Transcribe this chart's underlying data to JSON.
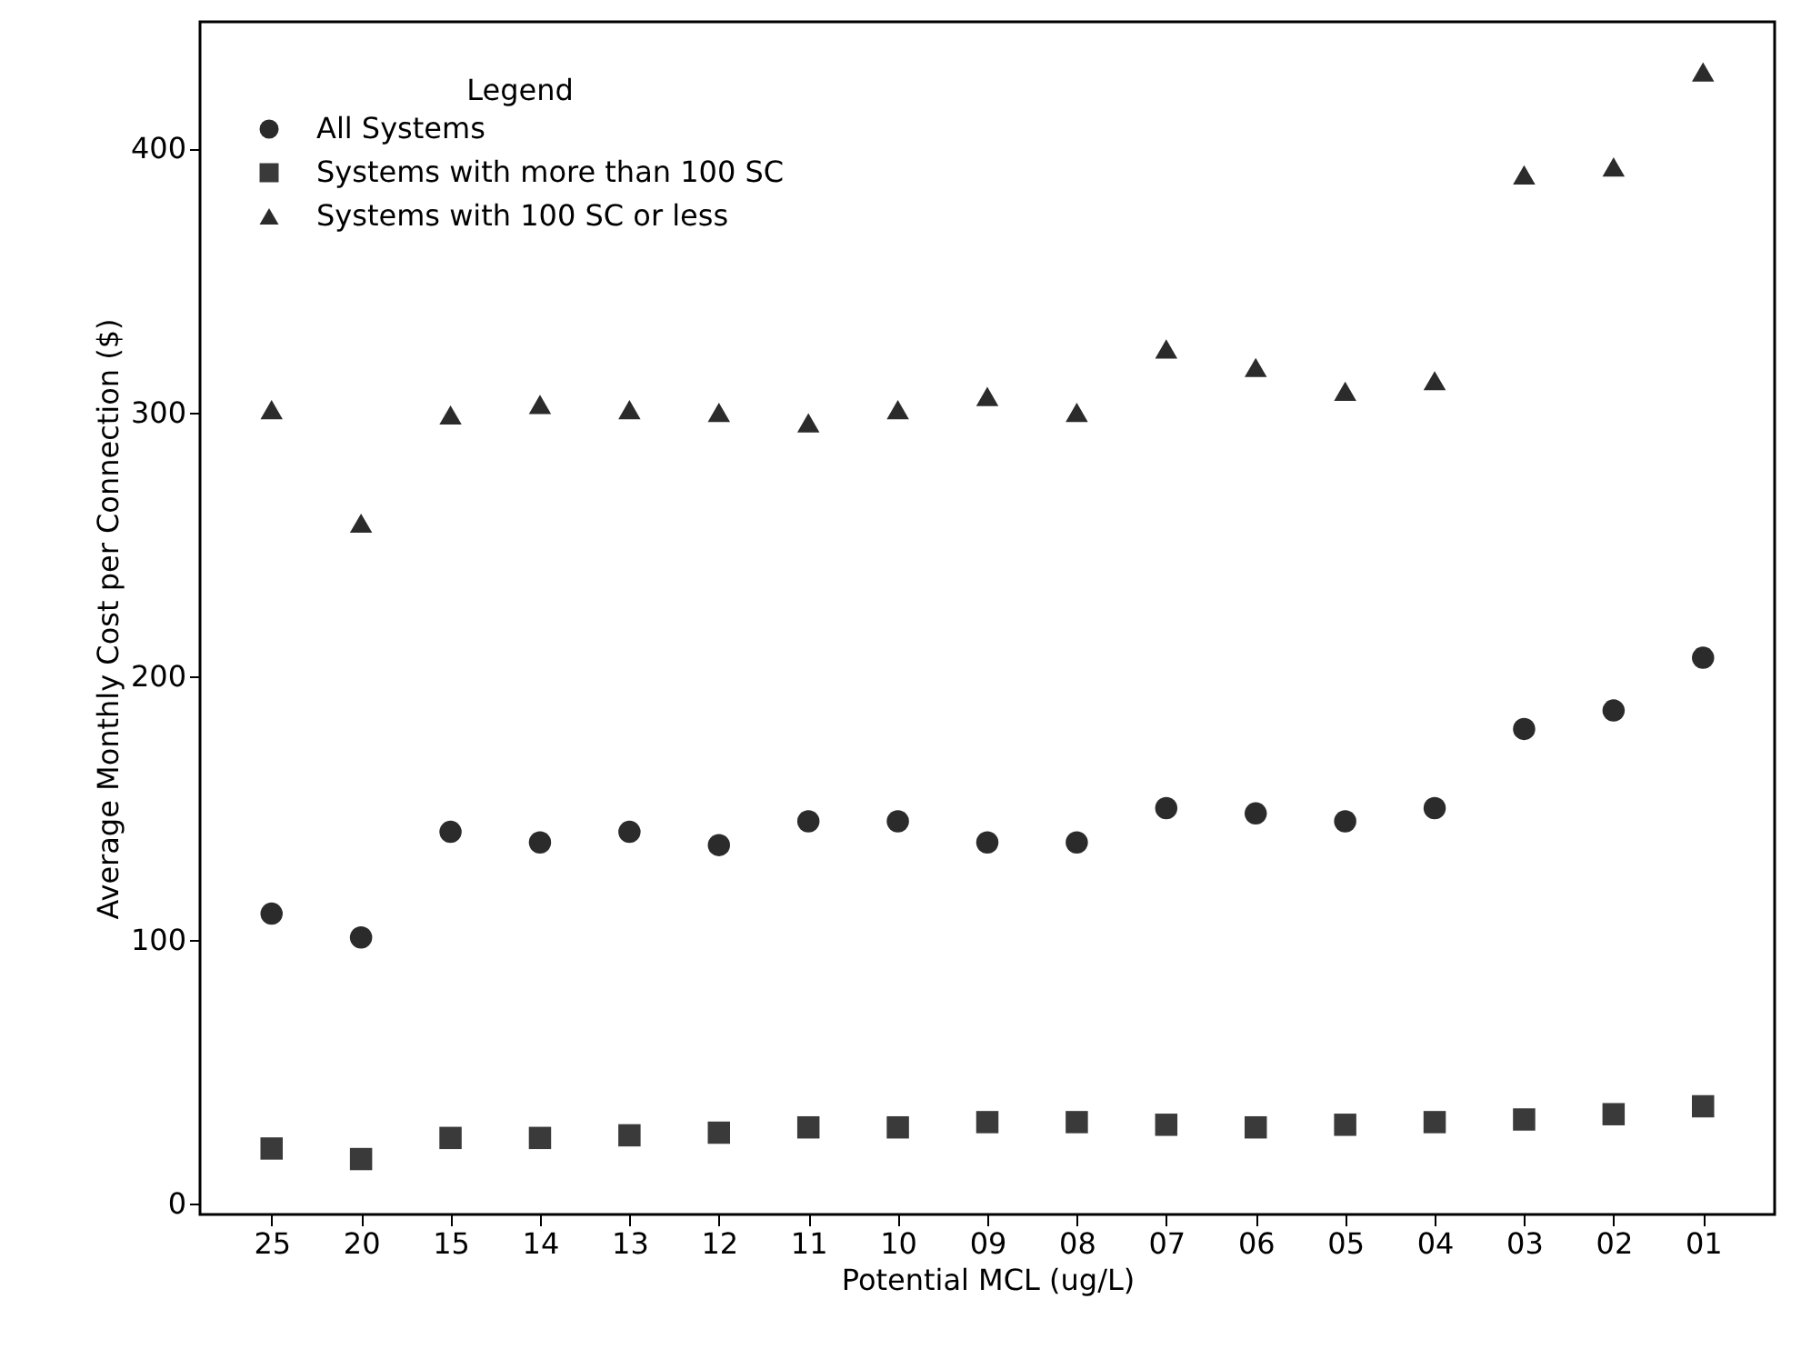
{
  "chart_data": {
    "type": "scatter",
    "xlabel": "Potential MCL (ug/L)",
    "ylabel": "Average Monthly Cost per Connection ($)",
    "legend_title": "Legend",
    "legend": "top left",
    "categories": [
      "25",
      "20",
      "15",
      "14",
      "13",
      "12",
      "11",
      "10",
      "09",
      "08",
      "07",
      "06",
      "05",
      "04",
      "03",
      "02",
      "01"
    ],
    "ylim": [
      -4,
      448
    ],
    "yticks": [
      0,
      100,
      200,
      300,
      400
    ],
    "series": [
      {
        "name": "All Systems",
        "color": "#2b2b2b",
        "marker": "circle",
        "values": [
          110,
          101,
          141,
          137,
          141,
          136,
          145,
          145,
          137,
          137,
          150,
          148,
          145,
          150,
          180,
          187,
          207
        ]
      },
      {
        "name": "Systems with more than 100 SC",
        "color": "#3a3a3a",
        "marker": "square",
        "values": [
          21,
          17,
          25,
          25,
          26,
          27,
          29,
          29,
          31,
          31,
          30,
          29,
          30,
          31,
          32,
          34,
          37
        ]
      },
      {
        "name": "Systems with 100 SC or less",
        "color": "#2b2b2b",
        "marker": "triangle",
        "values": [
          301,
          258,
          299,
          303,
          301,
          300,
          296,
          301,
          306,
          300,
          324,
          317,
          308,
          312,
          390,
          393,
          429
        ]
      }
    ]
  }
}
